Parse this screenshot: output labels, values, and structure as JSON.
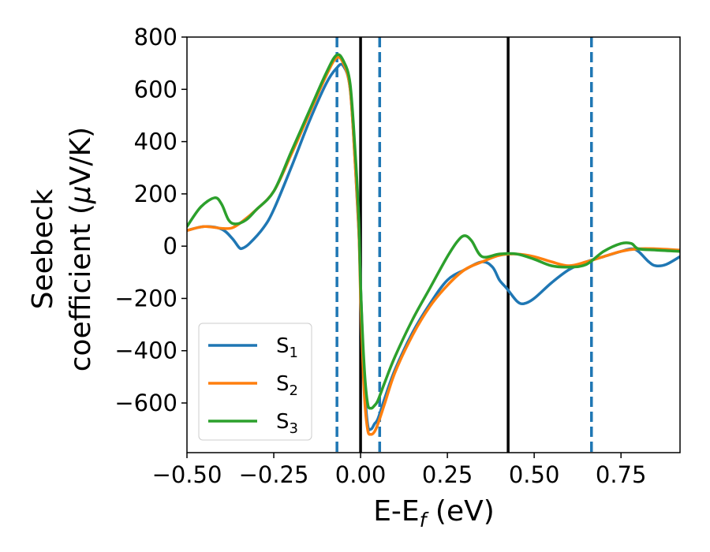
{
  "chart_data": {
    "type": "line",
    "xlabel": {
      "main": "E-E",
      "sub": "f",
      "unit": " (eV)"
    },
    "ylabel": {
      "line1": "Seebeck",
      "line2_main": "coefficient  (",
      "line2_mu": "μ",
      "line2_unit": "V/K)"
    },
    "xlim": [
      -0.5,
      0.92
    ],
    "ylim": [
      -790,
      800
    ],
    "xticks": [
      -0.5,
      -0.25,
      0.0,
      0.25,
      0.5,
      0.75
    ],
    "xtick_labels": [
      "−0.50",
      "−0.25",
      "0.00",
      "0.25",
      "0.50",
      "0.75"
    ],
    "yticks": [
      -600,
      -400,
      -200,
      0,
      200,
      400,
      600,
      800
    ],
    "ytick_labels": [
      "−600",
      "−400",
      "−200",
      "0",
      "200",
      "400",
      "600",
      "800"
    ],
    "grid": false,
    "legend": "lower-left",
    "series": [
      {
        "name": "S",
        "sub": "1",
        "color": "#1f77b4",
        "x": [
          -0.5,
          -0.45,
          -0.4,
          -0.37,
          -0.35,
          -0.34,
          -0.32,
          -0.28,
          -0.25,
          -0.2,
          -0.15,
          -0.1,
          -0.07,
          -0.05,
          -0.03,
          -0.015,
          -0.005,
          0.0,
          0.01,
          0.02,
          0.03,
          0.04,
          0.05,
          0.07,
          0.1,
          0.15,
          0.2,
          0.25,
          0.3,
          0.35,
          0.38,
          0.4,
          0.42,
          0.45,
          0.47,
          0.5,
          0.55,
          0.6,
          0.65,
          0.7,
          0.75,
          0.78,
          0.8,
          0.83,
          0.85,
          0.88,
          0.92
        ],
        "y": [
          60,
          75,
          65,
          30,
          -5,
          -8,
          10,
          70,
          140,
          300,
          470,
          620,
          680,
          690,
          600,
          300,
          50,
          -150,
          -500,
          -680,
          -700,
          -680,
          -660,
          -580,
          -470,
          -330,
          -220,
          -130,
          -90,
          -60,
          -80,
          -130,
          -160,
          -210,
          -220,
          -200,
          -140,
          -90,
          -60,
          -40,
          -20,
          -10,
          -20,
          -60,
          -75,
          -70,
          -40
        ]
      },
      {
        "name": "S",
        "sub": "2",
        "color": "#ff7f0e",
        "x": [
          -0.5,
          -0.45,
          -0.4,
          -0.37,
          -0.34,
          -0.3,
          -0.25,
          -0.2,
          -0.15,
          -0.1,
          -0.07,
          -0.05,
          -0.03,
          -0.015,
          -0.005,
          0.0,
          0.01,
          0.02,
          0.03,
          0.04,
          0.05,
          0.07,
          0.1,
          0.15,
          0.2,
          0.25,
          0.3,
          0.35,
          0.4,
          0.45,
          0.5,
          0.55,
          0.6,
          0.65,
          0.7,
          0.75,
          0.8,
          0.85,
          0.92
        ],
        "y": [
          60,
          75,
          68,
          70,
          95,
          140,
          210,
          350,
          500,
          650,
          720,
          700,
          600,
          300,
          50,
          -200,
          -550,
          -700,
          -720,
          -710,
          -680,
          -600,
          -480,
          -340,
          -230,
          -150,
          -90,
          -60,
          -35,
          -30,
          -40,
          -60,
          -75,
          -60,
          -40,
          -20,
          -10,
          -10,
          -15
        ]
      },
      {
        "name": "S",
        "sub": "3",
        "color": "#2ca02c",
        "x": [
          -0.5,
          -0.46,
          -0.42,
          -0.4,
          -0.38,
          -0.36,
          -0.33,
          -0.3,
          -0.25,
          -0.2,
          -0.15,
          -0.1,
          -0.07,
          -0.05,
          -0.03,
          -0.015,
          -0.005,
          0.0,
          0.01,
          0.02,
          0.03,
          0.04,
          0.05,
          0.07,
          0.1,
          0.15,
          0.2,
          0.25,
          0.28,
          0.3,
          0.32,
          0.35,
          0.4,
          0.45,
          0.5,
          0.55,
          0.6,
          0.65,
          0.7,
          0.75,
          0.78,
          0.8,
          0.85,
          0.92
        ],
        "y": [
          75,
          150,
          185,
          160,
          100,
          85,
          100,
          140,
          210,
          360,
          510,
          660,
          730,
          710,
          620,
          350,
          100,
          -150,
          -450,
          -600,
          -620,
          -610,
          -590,
          -520,
          -420,
          -280,
          -160,
          -40,
          20,
          40,
          20,
          -40,
          -30,
          -30,
          -50,
          -75,
          -80,
          -70,
          -20,
          10,
          10,
          -10,
          -15,
          -20
        ]
      }
    ],
    "vlines": [
      {
        "x": -0.068,
        "style": "dashed",
        "color": "#1f77b4"
      },
      {
        "x": 0.0,
        "style": "solid",
        "color": "#000000"
      },
      {
        "x": 0.055,
        "style": "dashed",
        "color": "#1f77b4"
      },
      {
        "x": 0.425,
        "style": "solid",
        "color": "#000000"
      },
      {
        "x": 0.665,
        "style": "dashed",
        "color": "#1f77b4"
      }
    ]
  }
}
